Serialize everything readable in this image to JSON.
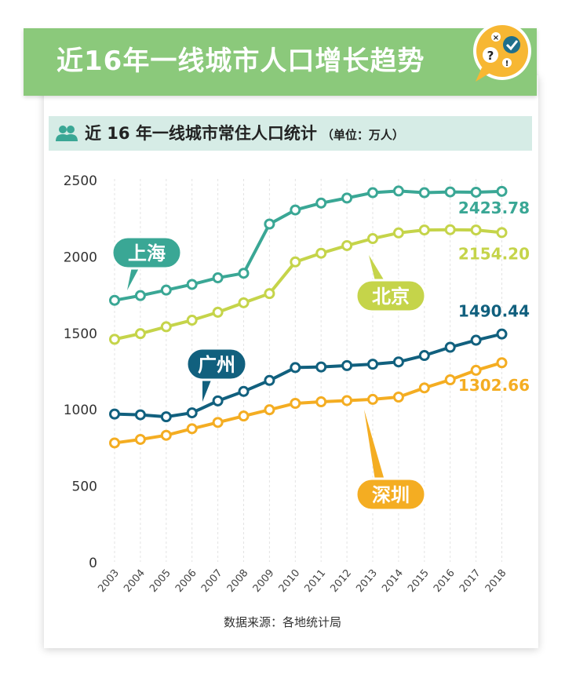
{
  "header": {
    "banner_title": "近16年一线城市人口增长趋势",
    "subtitle": "近 16 年一线城市常住人口统计",
    "unit": "（单位：万人）",
    "source": "数据来源：各地统计局"
  },
  "icons": [
    "people-icon",
    "quiz-badge-icon"
  ],
  "chart_data": {
    "type": "line",
    "title": "近 16 年一线城市常住人口统计",
    "unit": "万人",
    "x": [
      "2003",
      "2004",
      "2005",
      "2006",
      "2007",
      "2008",
      "2009",
      "2010",
      "2011",
      "2012",
      "2013",
      "2014",
      "2015",
      "2016",
      "2017",
      "2018"
    ],
    "yticks": [
      0,
      500,
      1000,
      1500,
      2000,
      2500
    ],
    "ylim": [
      0,
      2500
    ],
    "grid": "vertical dashed",
    "series": [
      {
        "name": "上海",
        "color": "#3aa795",
        "end_label": "2423.78",
        "values": [
          1711,
          1742,
          1778,
          1815,
          1858,
          1888,
          2210,
          2302,
          2347,
          2380,
          2415,
          2426,
          2415,
          2420,
          2418,
          2423.78
        ]
      },
      {
        "name": "北京",
        "color": "#c5d44a",
        "end_label": "2154.20",
        "values": [
          1456,
          1493,
          1538,
          1581,
          1633,
          1695,
          1755,
          1962,
          2019,
          2069,
          2115,
          2152,
          2171,
          2173,
          2171,
          2154.2
        ]
      },
      {
        "name": "广州",
        "color": "#11607e",
        "end_label": "1490.44",
        "values": [
          967,
          962,
          949,
          975,
          1053,
          1115,
          1187,
          1271,
          1275,
          1284,
          1293,
          1308,
          1350,
          1404,
          1450,
          1490.44
        ]
      },
      {
        "name": "深圳",
        "color": "#f4ad22",
        "end_label": "1302.66",
        "values": [
          778,
          801,
          828,
          871,
          912,
          954,
          995,
          1037,
          1047,
          1055,
          1063,
          1078,
          1138,
          1191,
          1253,
          1302.66
        ]
      }
    ]
  }
}
